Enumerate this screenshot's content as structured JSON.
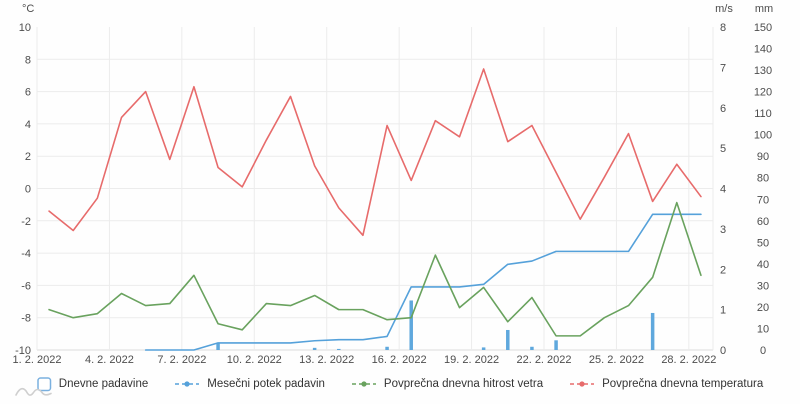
{
  "chart": {
    "axes": {
      "temperature": {
        "title": "°C",
        "min": -10,
        "max": 10,
        "step": 2,
        "ticks": [
          10,
          8,
          6,
          4,
          2,
          0,
          -2,
          -4,
          -6,
          -8,
          -10
        ]
      },
      "wind": {
        "title": "m/s",
        "min": 0,
        "max": 8,
        "step": 1,
        "ticks": [
          8,
          7,
          6,
          5,
          4,
          3,
          2,
          1,
          0
        ]
      },
      "precipitation": {
        "title": "mm",
        "min": 0,
        "max": 150,
        "step": 10,
        "ticks": [
          150,
          140,
          130,
          120,
          110,
          100,
          90,
          80,
          70,
          60,
          50,
          40,
          30,
          20,
          10,
          0
        ]
      },
      "x": {
        "label_days": [
          1,
          4,
          7,
          10,
          13,
          16,
          19,
          22,
          25,
          28
        ],
        "labels": [
          "1. 2. 2022",
          "4. 2. 2022",
          "7. 2. 2022",
          "10. 2. 2022",
          "13. 2. 2022",
          "16. 2. 2022",
          "19. 2. 2022",
          "22. 2. 2022",
          "25. 2. 2022",
          "28. 2. 2022"
        ]
      }
    },
    "colors": {
      "bar": "#5fa8dd",
      "cumulative_line": "#55a1da",
      "wind_line": "#69a25e",
      "temperature_line": "#e76b6b",
      "grid": "#ececec",
      "axis_line": "#dcdcdc",
      "text": "#4d4d4d",
      "legend_swatch_border": "#7ab0df"
    }
  },
  "chart_data": {
    "type": "bar+line combo, dual right axes",
    "x_unit": "date (February 2022)",
    "days": [
      1,
      2,
      3,
      4,
      5,
      6,
      7,
      8,
      9,
      10,
      11,
      12,
      13,
      14,
      15,
      16,
      17,
      18,
      19,
      20,
      21,
      22,
      23,
      24,
      25,
      26,
      27,
      28
    ],
    "series": [
      {
        "name": "Dnevne padavine",
        "type": "bar",
        "axis": "mm",
        "color": "#5fa8dd",
        "values": [
          0,
          0,
          0,
          0,
          0,
          0,
          0,
          3.3,
          0,
          0,
          0,
          1.0,
          0.5,
          0,
          1.5,
          23,
          0,
          0,
          1.2,
          9.3,
          1.5,
          4.5,
          0,
          0,
          0,
          17.2,
          0,
          0
        ]
      },
      {
        "name": "Mesečni potek padavin",
        "type": "line",
        "axis": "mm",
        "color": "#55a1da",
        "values": [
          null,
          null,
          null,
          null,
          0,
          0,
          0,
          3.3,
          3.3,
          3.3,
          3.3,
          4.3,
          4.8,
          4.8,
          6.3,
          29.3,
          29.3,
          29.3,
          30.5,
          39.8,
          41.3,
          45.8,
          45.8,
          45.8,
          45.8,
          63,
          63,
          63
        ]
      },
      {
        "name": "Povprečna dnevna hitrost vetra",
        "type": "line",
        "axis": "m/s",
        "color": "#69a25e",
        "values": [
          1.0,
          0.8,
          0.9,
          1.4,
          1.1,
          1.15,
          1.85,
          0.65,
          0.5,
          1.15,
          1.1,
          1.35,
          1.0,
          1.0,
          0.75,
          0.8,
          2.35,
          1.05,
          1.55,
          0.7,
          1.3,
          0.35,
          0.35,
          0.8,
          1.1,
          1.8,
          3.65,
          1.85
        ]
      },
      {
        "name": "Povprečna dnevna temperatura",
        "type": "line",
        "axis": "°C",
        "color": "#e76b6b",
        "values": [
          -1.4,
          -2.6,
          -0.6,
          4.4,
          6.0,
          1.8,
          6.3,
          1.3,
          0.1,
          3.0,
          5.7,
          1.4,
          -1.2,
          -2.9,
          3.9,
          0.5,
          4.2,
          3.2,
          7.4,
          2.9,
          3.9,
          1.0,
          -1.9,
          0.7,
          3.4,
          -0.8,
          1.5,
          -0.5
        ]
      }
    ],
    "axis_ranges": {
      "°C": [
        -10,
        10
      ],
      "m/s": [
        0,
        8
      ],
      "mm": [
        0,
        150
      ]
    },
    "grid": true,
    "legend_position": "bottom-center"
  }
}
